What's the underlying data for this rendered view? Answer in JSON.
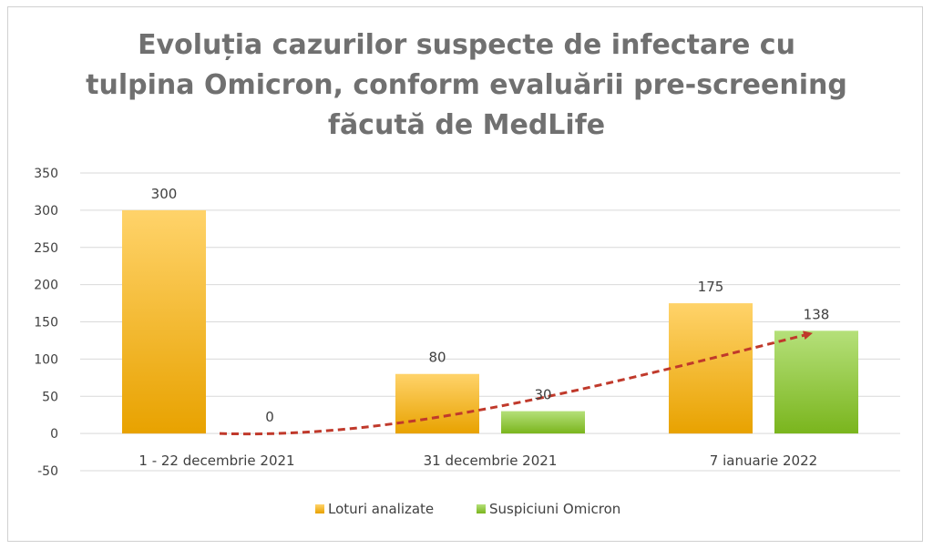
{
  "chart_data": {
    "type": "bar",
    "title_lines": [
      "Evoluția cazurilor suspecte de infectare cu",
      "tulpina Omicron, conform evaluării pre-screening",
      "făcută de MedLife"
    ],
    "categories": [
      "1 - 22 decembrie 2021",
      "31 decembrie  2021",
      "7 ianuarie 2022"
    ],
    "series": [
      {
        "name": "Loturi analizate",
        "values": [
          300,
          80,
          175
        ],
        "color": "#f5b800"
      },
      {
        "name": "Suspiciuni Omicron",
        "values": [
          0,
          30,
          138
        ],
        "color": "#8cc63f"
      }
    ],
    "ylim": [
      -50,
      350
    ],
    "yticks": [
      350,
      300,
      250,
      200,
      150,
      100,
      50,
      0,
      -50
    ],
    "grid": true,
    "legend": "bottom",
    "trend_arrow": {
      "style": "dashed",
      "color": "#c0392b"
    }
  }
}
